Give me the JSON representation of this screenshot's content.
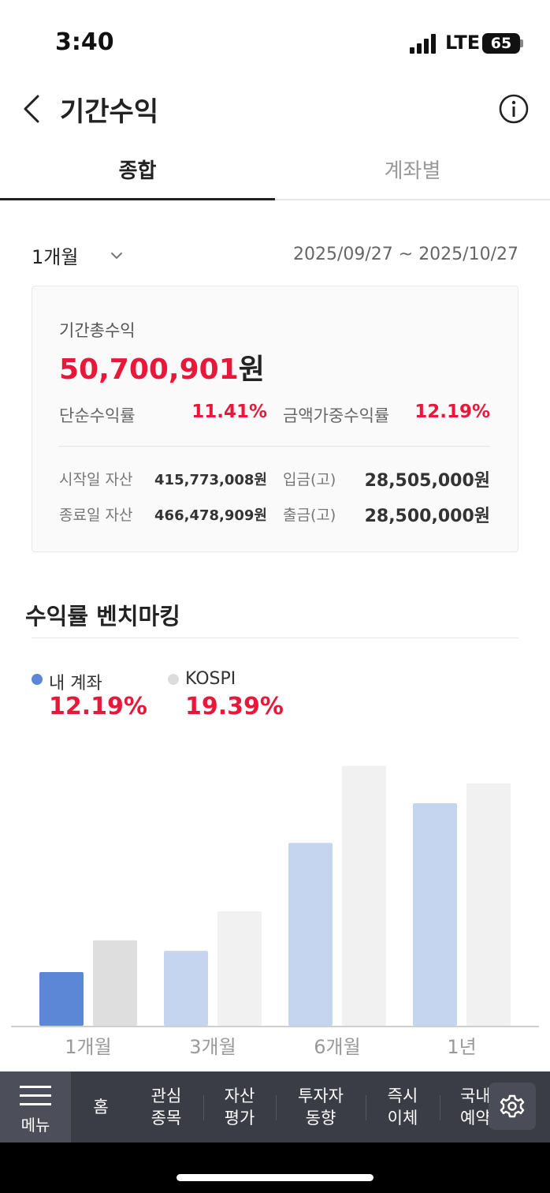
{
  "status_bar": {
    "time": "3:40",
    "network": "LTE",
    "battery": "65"
  },
  "header": {
    "title": "기간수익"
  },
  "tabs": [
    {
      "label": "종합",
      "active": true
    },
    {
      "label": "계좌별",
      "active": false
    }
  ],
  "period": {
    "selected": "1개월",
    "date_range": "2025/09/27 ~ 2025/10/27"
  },
  "summary": {
    "total_label": "기간총수익",
    "total_amount": "50,700,901",
    "total_unit": "원",
    "simple_rate_label": "단순수익률",
    "simple_rate": "11.41%",
    "weighted_rate_label": "금액가중수익률",
    "weighted_rate": "12.19%",
    "start_asset_label": "시작일 자산",
    "start_asset": "415,773,008원",
    "end_asset_label": "종료일 자산",
    "end_asset": "466,478,909원",
    "deposit_label": "입금(고)",
    "deposit": "28,505,000원",
    "withdraw_label": "출금(고)",
    "withdraw": "28,500,000원"
  },
  "benchmark": {
    "title": "수익률 벤치마킹",
    "legend": [
      {
        "name": "내 계좌",
        "value": "12.19%",
        "color": "#5b87d6"
      },
      {
        "name": "KOSPI",
        "value": "19.39%",
        "color": "#dcdcdc"
      }
    ]
  },
  "chart_data": {
    "type": "bar",
    "categories": [
      "1개월",
      "3개월",
      "6개월",
      "1년"
    ],
    "series": [
      {
        "name": "내 계좌",
        "values": [
          12.19,
          17.0,
          41.5,
          50.5
        ]
      },
      {
        "name": "KOSPI",
        "values": [
          19.39,
          26.0,
          59.0,
          55.0
        ]
      }
    ],
    "active_category": 0,
    "colors": {
      "account_active": "#5b87d6",
      "account": "#c5d5ef",
      "kospi_active": "#dedede",
      "kospi": "#f1f1f1",
      "axis": "#cfcfcf",
      "tick_label": "#999999"
    }
  },
  "bottom_nav": {
    "menu_label": "메뉴",
    "items": [
      {
        "line1": "홈",
        "line2": ""
      },
      {
        "line1": "관심",
        "line2": "종목"
      },
      {
        "line1": "자산",
        "line2": "평가"
      },
      {
        "line1": "투자자",
        "line2": "동향"
      },
      {
        "line1": "즉시",
        "line2": "이체"
      },
      {
        "line1": "국내",
        "line2": "예약"
      }
    ]
  }
}
